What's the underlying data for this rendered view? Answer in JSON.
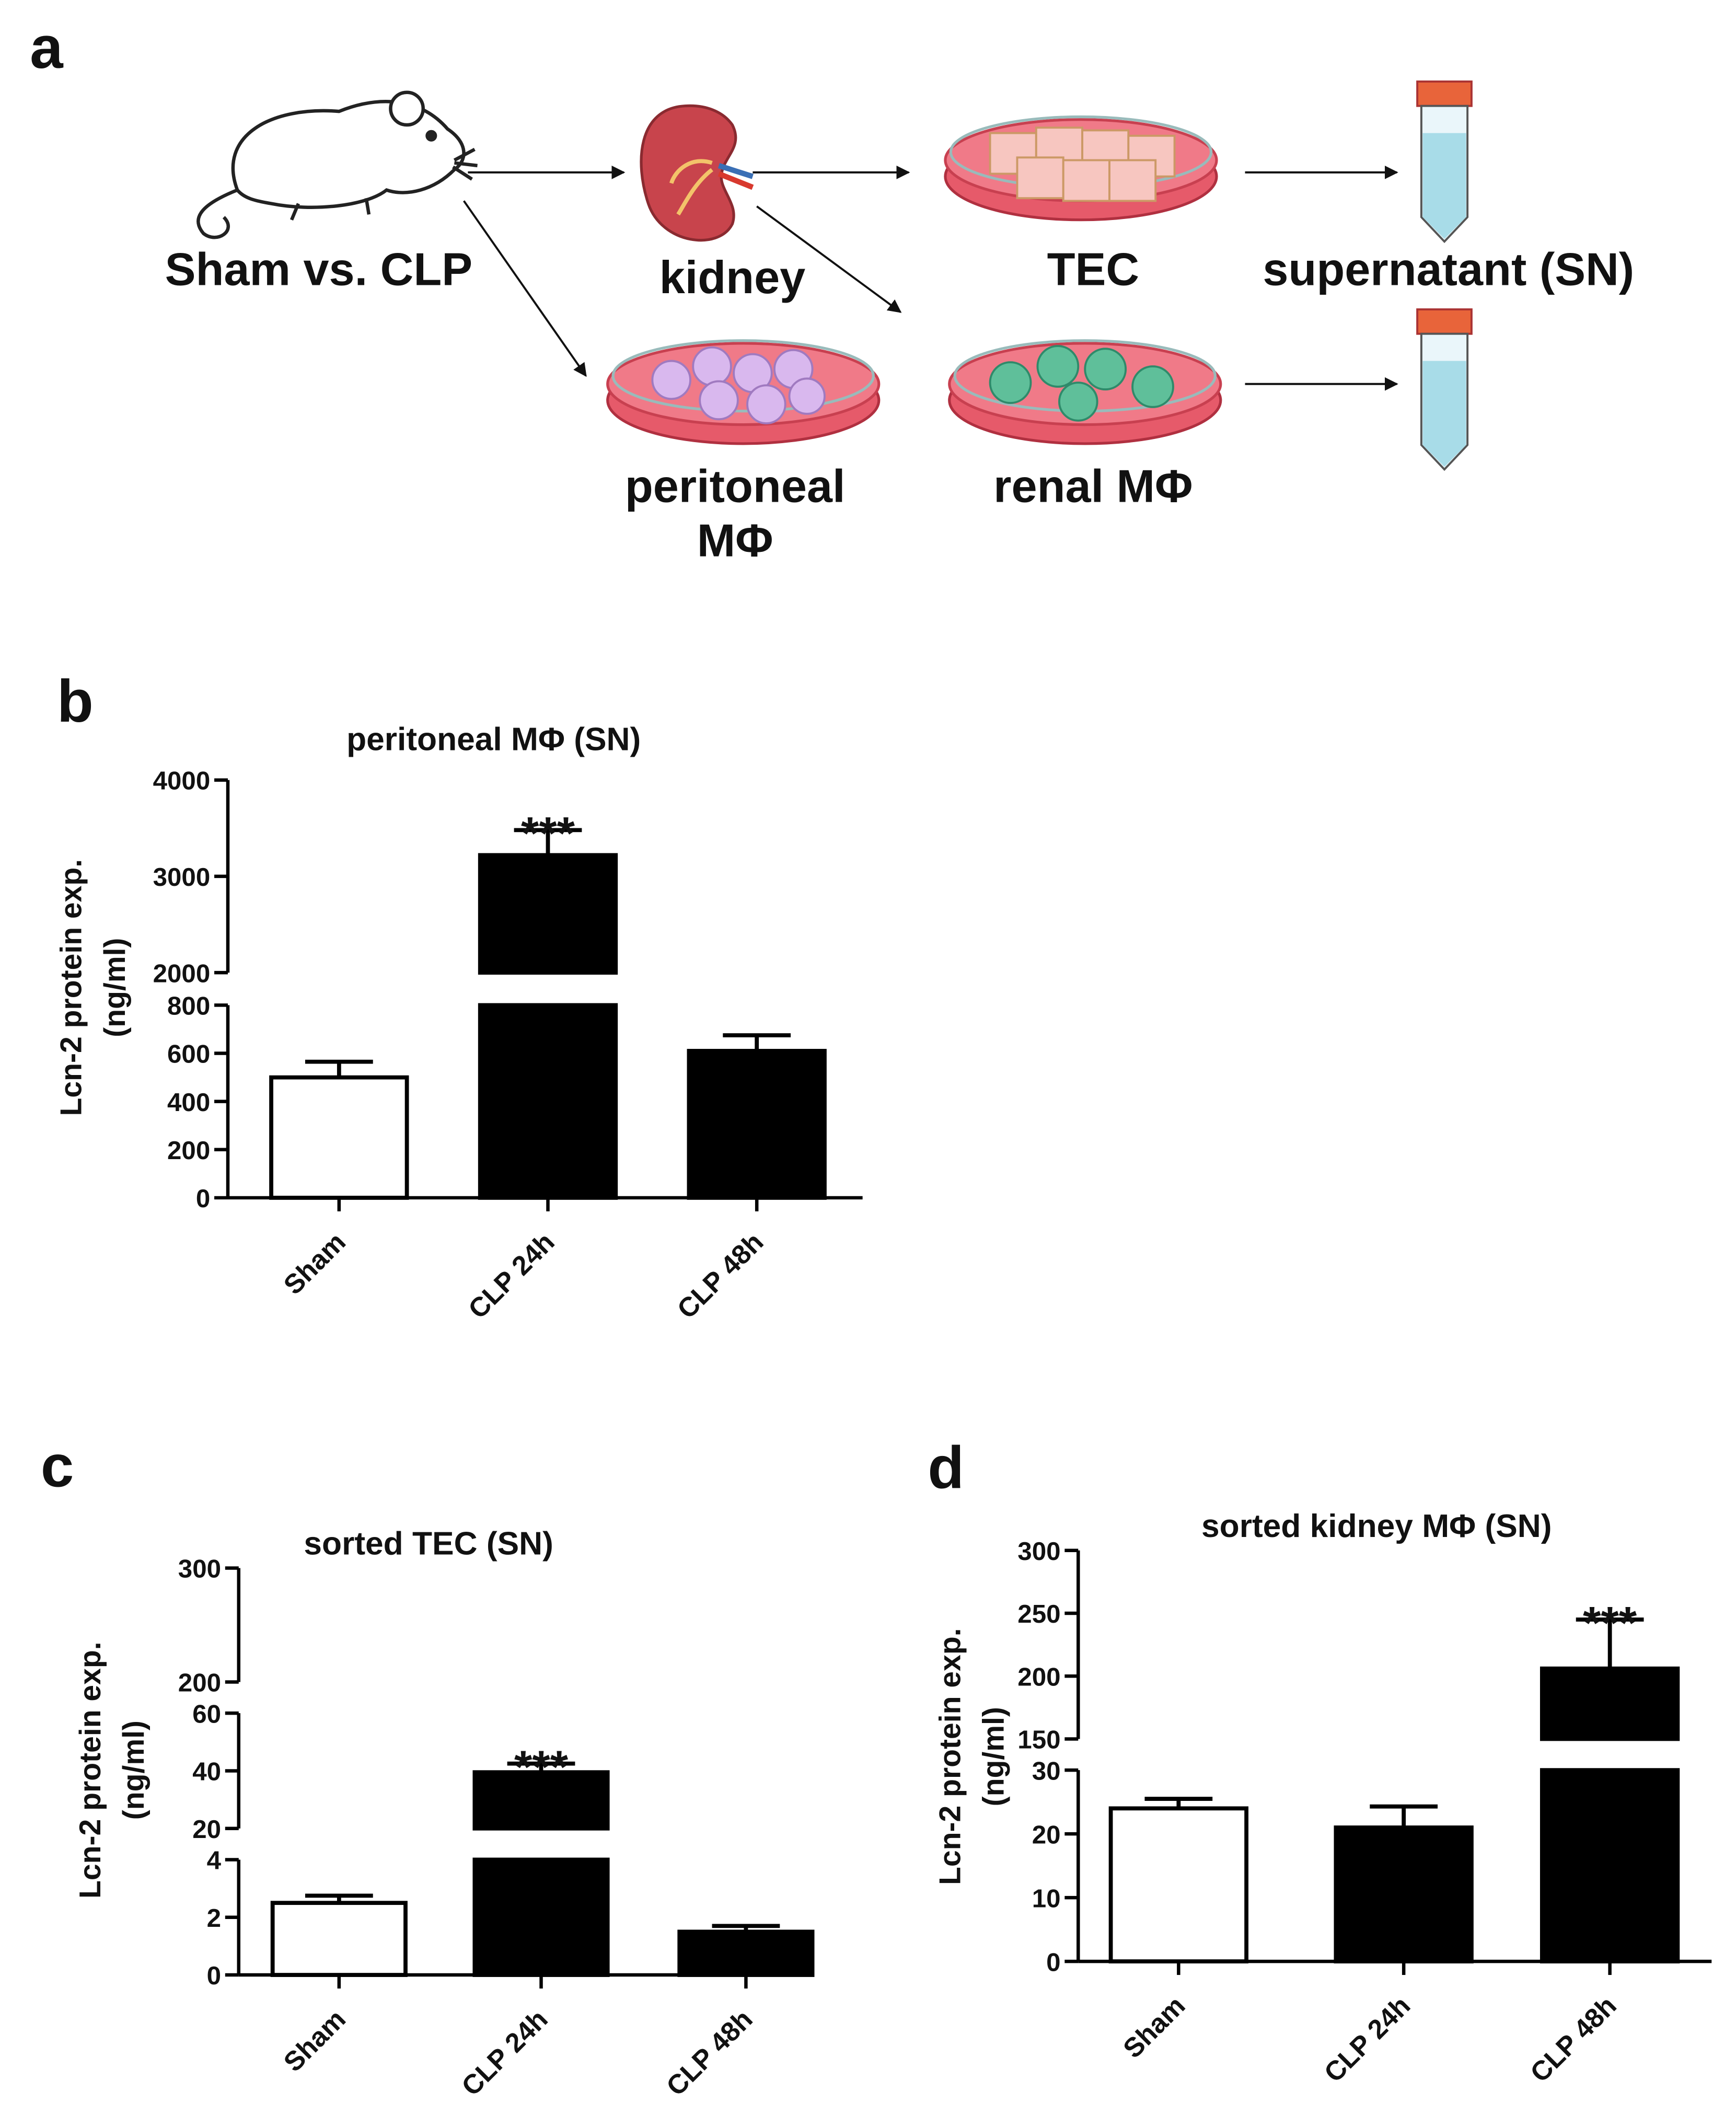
{
  "panel_labels": [
    "a",
    "b",
    "c",
    "d"
  ],
  "diagram": {
    "source": "Sham vs. CLP",
    "organ": "kidney",
    "cells_top": "TEC",
    "product": "supernatant (SN)",
    "cells_bottom_left": [
      "peritoneal",
      "MΦ"
    ],
    "cells_bottom_right": "renal MΦ"
  },
  "chart_data": [
    {
      "type": "bar",
      "title": "peritoneal MΦ (SN)",
      "ylabel": [
        "Lcn-2 protein exp.",
        "(ng/ml)"
      ],
      "categories": [
        "Sham",
        "CLP 24h",
        "CLP 48h"
      ],
      "values": [
        500,
        3220,
        610
      ],
      "errors": [
        65,
        260,
        65
      ],
      "significance": [
        null,
        "***",
        null
      ],
      "bar_colors": [
        "#ffffff",
        "#000000",
        "#000000"
      ],
      "edgecolor": "#000000",
      "segments": [
        {
          "ylim": [
            0,
            800
          ],
          "yticks": [
            0,
            200,
            400,
            600,
            800
          ]
        },
        {
          "ylim": [
            2000,
            4000
          ],
          "yticks": [
            2000,
            3000,
            4000
          ]
        }
      ]
    },
    {
      "type": "bar",
      "title": "sorted TEC (SN)",
      "ylabel": [
        "Lcn-2 protein exp.",
        "(ng/ml)"
      ],
      "categories": [
        "Sham",
        "CLP 24h",
        "CLP 48h"
      ],
      "values": [
        2.5,
        39.5,
        1.5
      ],
      "errors": [
        0.25,
        3,
        0.2
      ],
      "significance": [
        null,
        "***",
        null
      ],
      "bar_colors": [
        "#ffffff",
        "#000000",
        "#000000"
      ],
      "edgecolor": "#000000",
      "segments": [
        {
          "ylim": [
            0,
            4
          ],
          "yticks": [
            0,
            2,
            4
          ]
        },
        {
          "ylim": [
            20,
            60
          ],
          "yticks": [
            20,
            40,
            60
          ]
        },
        {
          "ylim": [
            200,
            300
          ],
          "yticks": [
            200,
            300
          ]
        }
      ]
    },
    {
      "type": "bar",
      "title": "sorted kidney MΦ (SN)",
      "ylabel": [
        "Lcn-2 protein exp.",
        "(ng/ml)"
      ],
      "categories": [
        "Sham",
        "CLP 24h",
        "CLP 48h"
      ],
      "values": [
        24,
        21,
        206
      ],
      "errors": [
        1.5,
        3.3,
        39
      ],
      "significance": [
        null,
        null,
        "***"
      ],
      "bar_colors": [
        "#ffffff",
        "#000000",
        "#000000"
      ],
      "edgecolor": "#000000",
      "segments": [
        {
          "ylim": [
            0,
            30
          ],
          "yticks": [
            0,
            10,
            20,
            30
          ]
        },
        {
          "ylim": [
            150,
            300
          ],
          "yticks": [
            150,
            200,
            250,
            300
          ]
        }
      ]
    }
  ]
}
